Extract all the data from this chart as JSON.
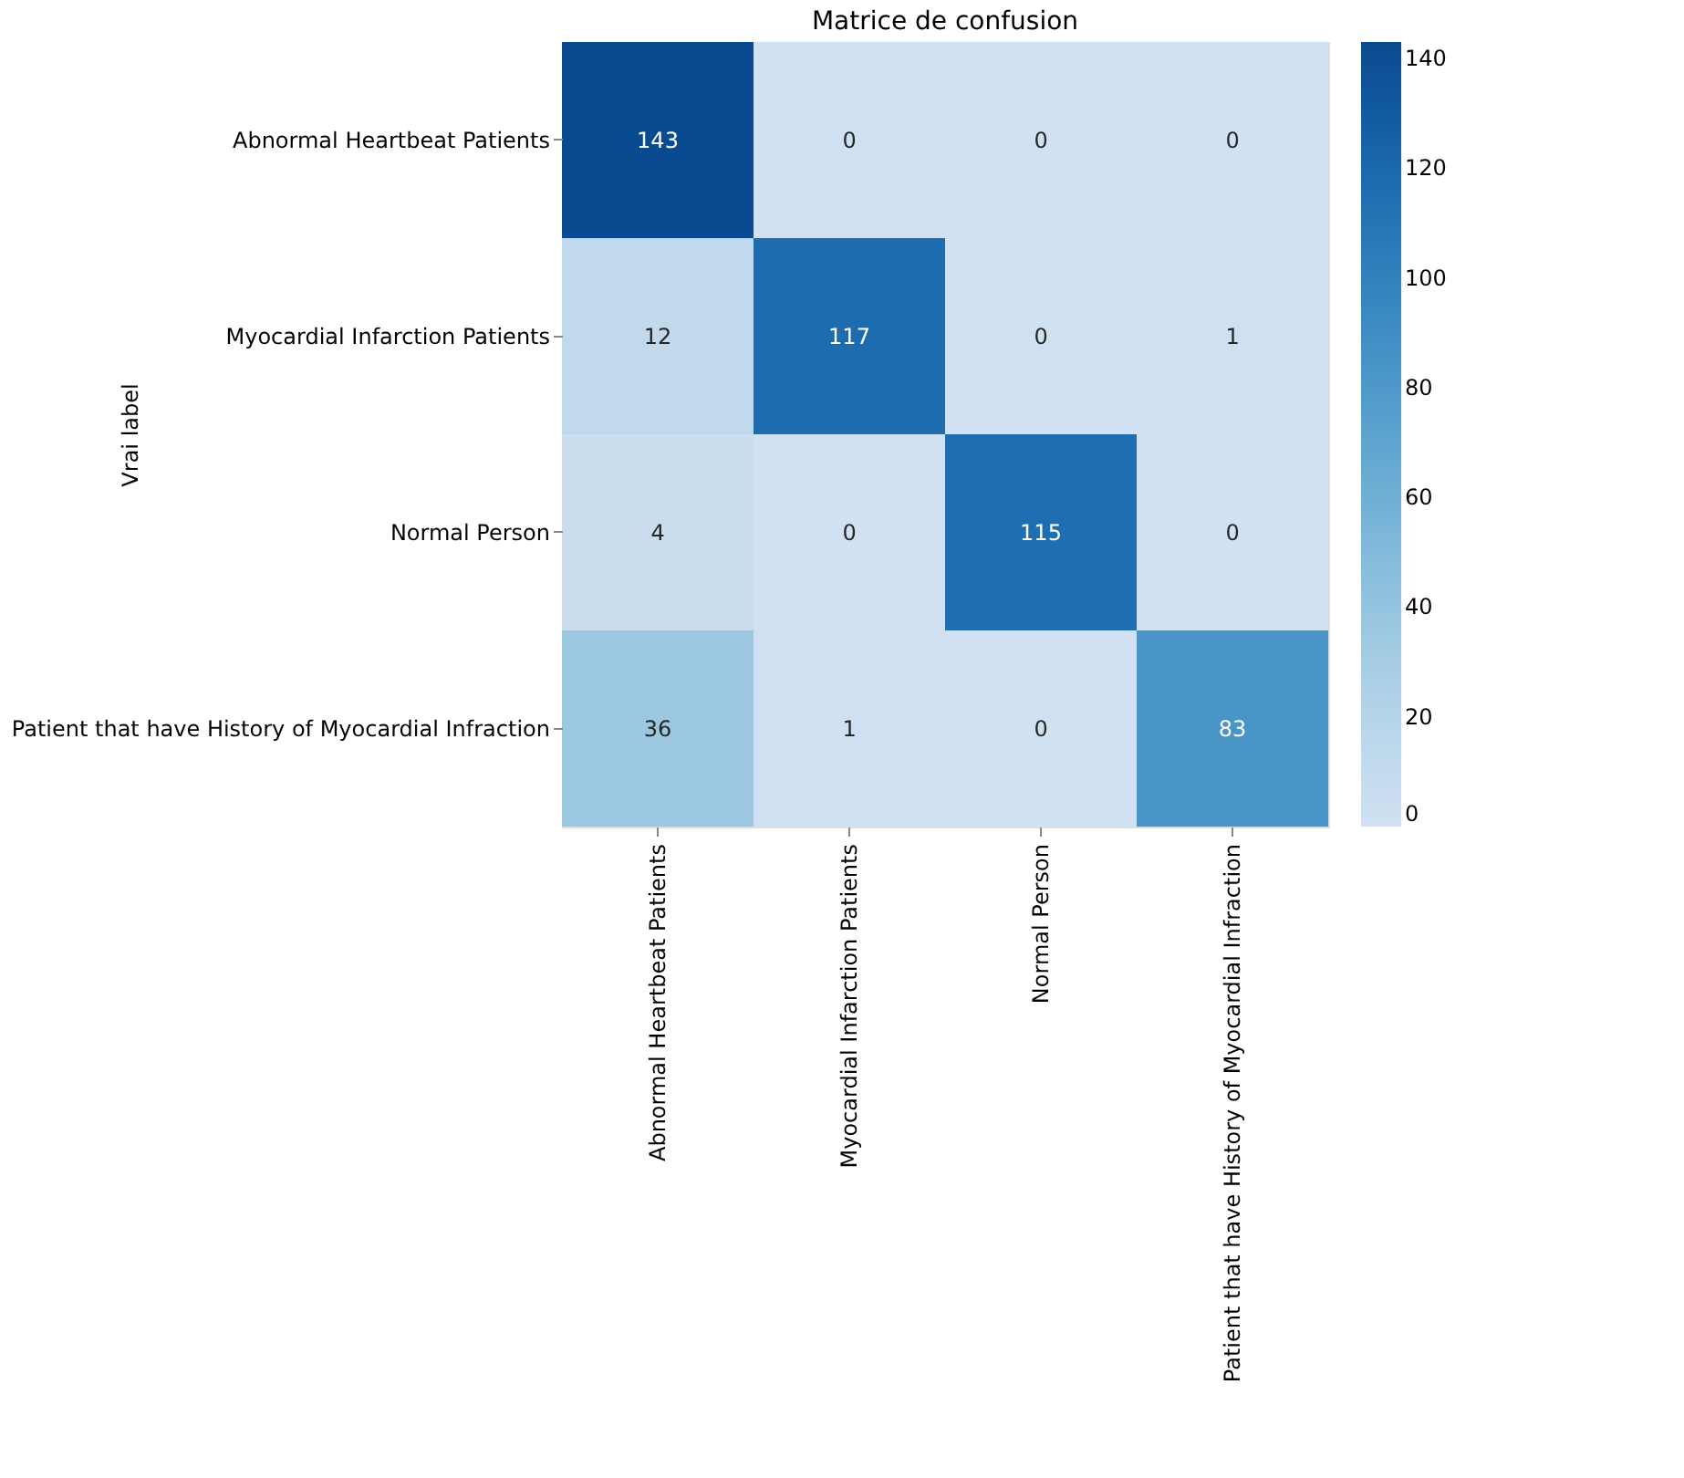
{
  "chart_data": {
    "type": "heatmap",
    "title": "Matrice de confusion",
    "ylabel": "Vrai label",
    "categories": [
      "Abnormal Heartbeat Patients",
      "Myocardial Infarction Patients",
      "Normal Person",
      "Patient that have History of Myocardial Infraction"
    ],
    "y_categories": [
      "Abnormal Heartbeat Patients",
      "Myocardial Infarction Patients",
      "Normal Person",
      "Patient that have History of Myocardial Infraction"
    ],
    "cells": [
      [
        143,
        0,
        0,
        0
      ],
      [
        12,
        117,
        0,
        1
      ],
      [
        4,
        0,
        115,
        0
      ],
      [
        36,
        1,
        0,
        83
      ]
    ],
    "clim": [
      0,
      143
    ],
    "cticks": [
      0,
      20,
      40,
      60,
      80,
      100,
      120,
      140
    ],
    "data_labels": true
  }
}
